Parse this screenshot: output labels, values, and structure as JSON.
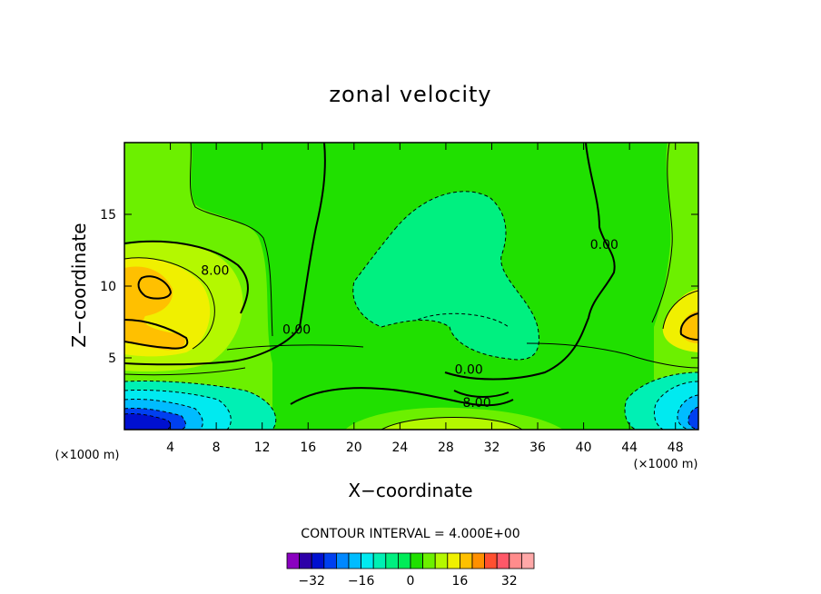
{
  "chart_data": {
    "type": "heatmap",
    "title": "zonal velocity",
    "xlabel": "X−coordinate",
    "ylabel": "Z−coordinate",
    "x_unit": "(×1000 m)",
    "z_unit": "(×1000 m)",
    "xlim": [
      0,
      50
    ],
    "ylim": [
      0,
      20
    ],
    "x_ticks": [
      4,
      8,
      12,
      16,
      20,
      24,
      28,
      32,
      36,
      40,
      44,
      48
    ],
    "x_tick_labels": [
      "4",
      "8",
      "12",
      "16",
      "20",
      "24",
      "28",
      "32",
      "36",
      "40",
      "44",
      "48"
    ],
    "y_ticks": [
      5,
      10,
      15
    ],
    "y_tick_labels": [
      "5",
      "10",
      "15"
    ],
    "contour_labels": [
      {
        "text": "8.00",
        "x": 7.9,
        "z": 11.1
      },
      {
        "text": "0.00",
        "x": 15.0,
        "z": 7.0
      },
      {
        "text": "0.00",
        "x": 41.8,
        "z": 12.9
      },
      {
        "text": "0.00",
        "x": 30.0,
        "z": 4.2
      },
      {
        "text": "8.00",
        "x": 30.7,
        "z": 1.9
      }
    ],
    "contour_interval_text": "CONTOUR INTERVAL = 4.000E+00",
    "colorbar": {
      "levels": [
        -36,
        -32,
        -28,
        -24,
        -20,
        -16,
        -12,
        -8,
        -4,
        0,
        4,
        8,
        12,
        16,
        20,
        24,
        28,
        32,
        36
      ],
      "tick_values": [
        -32,
        -16,
        0,
        16,
        32
      ],
      "tick_labels": [
        "−32",
        "−16",
        "0",
        "16",
        "32"
      ],
      "colors": [
        "#8a00c0",
        "#2d00a8",
        "#0010d0",
        "#0040f0",
        "#0088ff",
        "#00bcff",
        "#00eaf0",
        "#00f0b4",
        "#00f080",
        "#00ec58",
        "#20e000",
        "#6cf000",
        "#b4f800",
        "#f0f000",
        "#ffc000",
        "#ff9000",
        "#ff5030",
        "#ff5868",
        "#ff8c8c",
        "#ffa8a8"
      ]
    }
  }
}
